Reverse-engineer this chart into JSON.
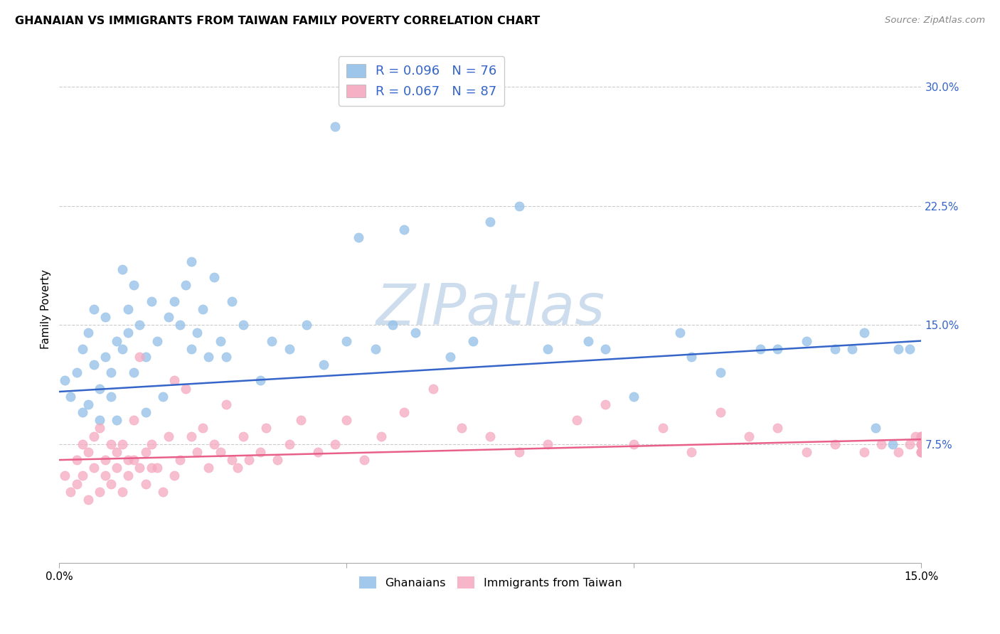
{
  "title": "GHANAIAN VS IMMIGRANTS FROM TAIWAN FAMILY POVERTY CORRELATION CHART",
  "source": "Source: ZipAtlas.com",
  "ylabel": "Family Poverty",
  "ytick_values": [
    7.5,
    15.0,
    22.5,
    30.0
  ],
  "xlim": [
    0.0,
    15.0
  ],
  "ylim": [
    0.0,
    32.0
  ],
  "legend1_text": "R = 0.096   N = 76",
  "legend2_text": "R = 0.067   N = 87",
  "blue_color": "#92c0e8",
  "pink_color": "#f5a8c0",
  "blue_line_color": "#3565c8",
  "pink_line_color": "#e8608a",
  "scatter_alpha": 0.75,
  "scatter_size": 90,
  "blue_line_x0": 0.0,
  "blue_line_y0": 10.8,
  "blue_line_x1": 15.0,
  "blue_line_y1": 14.0,
  "pink_line_x0": 0.0,
  "pink_line_y0": 6.5,
  "pink_line_x1": 15.0,
  "pink_line_y1": 7.8,
  "watermark": "ZIPatlas",
  "watermark_color_zip": "#c8d8e8",
  "watermark_color_atlas": "#b8c8d8",
  "ghanaian_x": [
    0.1,
    0.2,
    0.3,
    0.4,
    0.4,
    0.5,
    0.5,
    0.6,
    0.6,
    0.7,
    0.7,
    0.8,
    0.8,
    0.9,
    0.9,
    1.0,
    1.0,
    1.1,
    1.1,
    1.2,
    1.2,
    1.3,
    1.3,
    1.4,
    1.5,
    1.5,
    1.6,
    1.7,
    1.8,
    1.9,
    2.0,
    2.1,
    2.2,
    2.3,
    2.3,
    2.4,
    2.5,
    2.6,
    2.7,
    2.8,
    3.0,
    3.2,
    3.5,
    3.7,
    4.0,
    4.3,
    4.6,
    5.0,
    5.5,
    5.8,
    6.2,
    6.8,
    7.2,
    8.0,
    8.5,
    9.2,
    10.0,
    10.8,
    11.5,
    12.2,
    13.0,
    13.5,
    14.0,
    14.2,
    14.5,
    14.8,
    4.8,
    5.2,
    6.0,
    7.5,
    9.5,
    11.0,
    12.5,
    13.8,
    14.6,
    2.9
  ],
  "ghanaian_y": [
    11.5,
    10.5,
    12.0,
    13.5,
    9.5,
    10.0,
    14.5,
    12.5,
    16.0,
    11.0,
    9.0,
    13.0,
    15.5,
    12.0,
    10.5,
    14.0,
    9.0,
    18.5,
    13.5,
    16.0,
    14.5,
    17.5,
    12.0,
    15.0,
    9.5,
    13.0,
    16.5,
    14.0,
    10.5,
    15.5,
    16.5,
    15.0,
    17.5,
    13.5,
    19.0,
    14.5,
    16.0,
    13.0,
    18.0,
    14.0,
    16.5,
    15.0,
    11.5,
    14.0,
    13.5,
    15.0,
    12.5,
    14.0,
    13.5,
    15.0,
    14.5,
    13.0,
    14.0,
    22.5,
    13.5,
    14.0,
    10.5,
    14.5,
    12.0,
    13.5,
    14.0,
    13.5,
    14.5,
    8.5,
    7.5,
    13.5,
    27.5,
    20.5,
    21.0,
    21.5,
    13.5,
    13.0,
    13.5,
    13.5,
    13.5,
    13.0
  ],
  "taiwan_x": [
    0.1,
    0.2,
    0.3,
    0.3,
    0.4,
    0.4,
    0.5,
    0.5,
    0.6,
    0.6,
    0.7,
    0.7,
    0.8,
    0.8,
    0.9,
    0.9,
    1.0,
    1.0,
    1.1,
    1.1,
    1.2,
    1.2,
    1.3,
    1.3,
    1.4,
    1.4,
    1.5,
    1.5,
    1.6,
    1.6,
    1.7,
    1.8,
    1.9,
    2.0,
    2.0,
    2.1,
    2.2,
    2.3,
    2.4,
    2.5,
    2.6,
    2.7,
    2.8,
    2.9,
    3.0,
    3.1,
    3.2,
    3.3,
    3.5,
    3.6,
    3.8,
    4.0,
    4.2,
    4.5,
    4.8,
    5.0,
    5.3,
    5.6,
    6.0,
    6.5,
    7.0,
    7.5,
    8.0,
    8.5,
    9.0,
    9.5,
    10.0,
    10.5,
    11.0,
    11.5,
    12.0,
    12.5,
    13.0,
    13.5,
    14.0,
    14.3,
    14.6,
    14.8,
    14.9,
    15.0,
    15.0,
    15.0,
    15.0,
    15.0,
    15.0,
    15.0,
    15.0
  ],
  "taiwan_y": [
    5.5,
    4.5,
    6.5,
    5.0,
    7.5,
    5.5,
    7.0,
    4.0,
    8.0,
    6.0,
    8.5,
    4.5,
    6.5,
    5.5,
    7.5,
    5.0,
    6.0,
    7.0,
    7.5,
    4.5,
    6.5,
    5.5,
    9.0,
    6.5,
    13.0,
    6.0,
    7.0,
    5.0,
    7.5,
    6.0,
    6.0,
    4.5,
    8.0,
    5.5,
    11.5,
    6.5,
    11.0,
    8.0,
    7.0,
    8.5,
    6.0,
    7.5,
    7.0,
    10.0,
    6.5,
    6.0,
    8.0,
    6.5,
    7.0,
    8.5,
    6.5,
    7.5,
    9.0,
    7.0,
    7.5,
    9.0,
    6.5,
    8.0,
    9.5,
    11.0,
    8.5,
    8.0,
    7.0,
    7.5,
    9.0,
    10.0,
    7.5,
    8.5,
    7.0,
    9.5,
    8.0,
    8.5,
    7.0,
    7.5,
    7.0,
    7.5,
    7.0,
    7.5,
    8.0,
    7.0,
    7.5,
    7.0,
    7.5,
    8.0,
    7.0,
    7.5,
    8.0
  ]
}
